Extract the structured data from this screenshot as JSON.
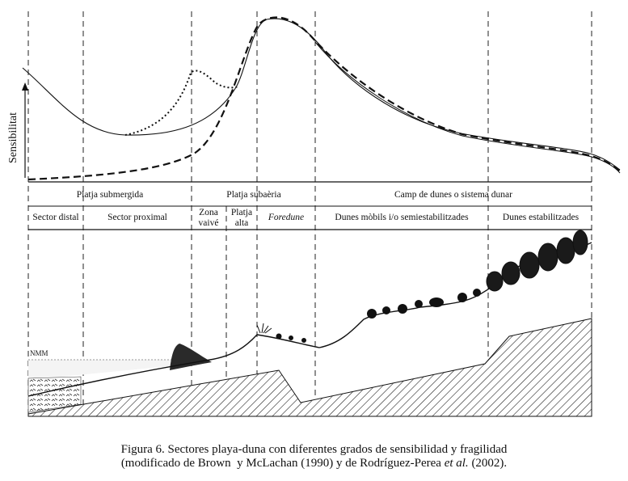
{
  "y_axis_label": "Sensibilitat",
  "zones": [
    {
      "name": "zone-platja-submergida",
      "label": "Platja submergida"
    },
    {
      "name": "zone-platja-subaeria",
      "label": "Platja subaèria"
    },
    {
      "name": "zone-camp-dunes",
      "label": "Camp de dunes o sistema dunar"
    }
  ],
  "sectors": [
    {
      "name": "sector-distal",
      "lines": [
        "Sector distal"
      ],
      "italic": false
    },
    {
      "name": "sector-proximal",
      "lines": [
        "Sector proximal"
      ],
      "italic": false
    },
    {
      "name": "sector-zona-vaive",
      "lines": [
        "Zona",
        "vaivé"
      ],
      "italic": false
    },
    {
      "name": "sector-platja-alta",
      "lines": [
        "Platja",
        "alta"
      ],
      "italic": false
    },
    {
      "name": "sector-foredune",
      "lines": [
        "Foredune"
      ],
      "italic": true
    },
    {
      "name": "sector-dunes-mobils",
      "lines": [
        "Dunes mòbils i/o semiestabilitzades"
      ],
      "italic": false
    },
    {
      "name": "sector-dunes-estabilitzades",
      "lines": [
        "Dunes estabilitzades"
      ],
      "italic": false
    }
  ],
  "sea_level_label": "NMM",
  "caption": {
    "line1_text": "Figura 6. Sectores playa-duna con diferentes grados de sensibilidad y fragilidad",
    "line2_pre": "(modificado de Brown  y McLachan (1990) y de Rodríguez-Perea ",
    "line2_italic": "et al.",
    "line2_post": " (2002)."
  }
}
